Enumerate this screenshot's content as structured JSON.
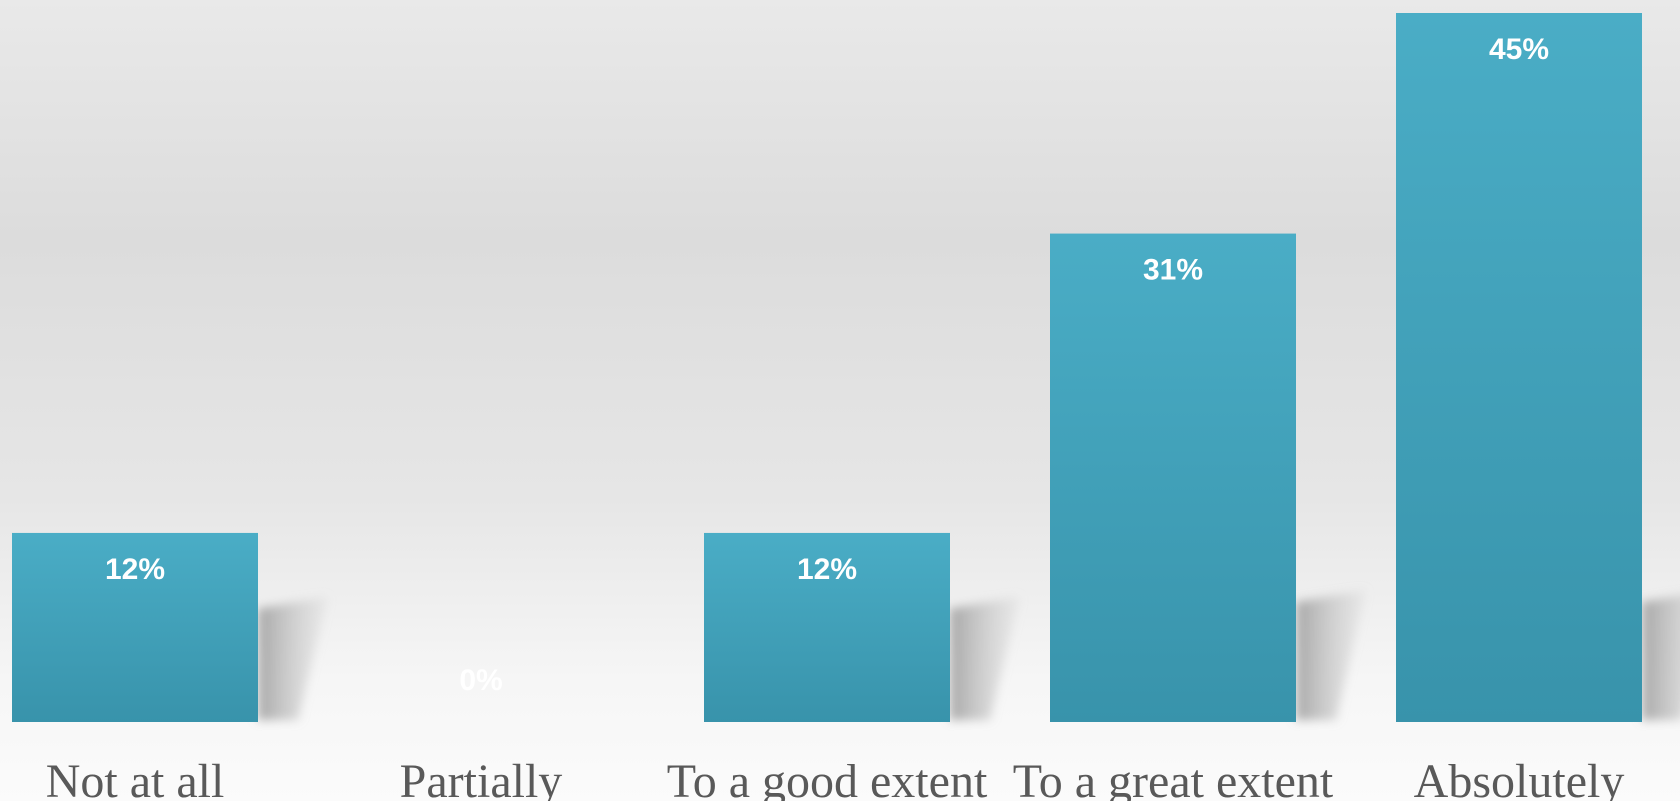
{
  "chart_data": {
    "type": "bar",
    "categories": [
      "Not at all",
      "Partially",
      "To a good extent",
      "To a great extent",
      "Absolutely"
    ],
    "values": [
      12,
      0,
      12,
      31,
      45
    ],
    "data_labels": [
      "12%",
      "0%",
      "12%",
      "31%",
      "45%"
    ],
    "ylim": [
      0,
      45
    ],
    "grid": false,
    "legend": "none",
    "colors": {
      "bar_top": "#4aadc6",
      "bar_bottom": "#3893ab",
      "label": "#ffffff",
      "category_text": "#595959",
      "shadow": "#9a9a9a"
    }
  }
}
